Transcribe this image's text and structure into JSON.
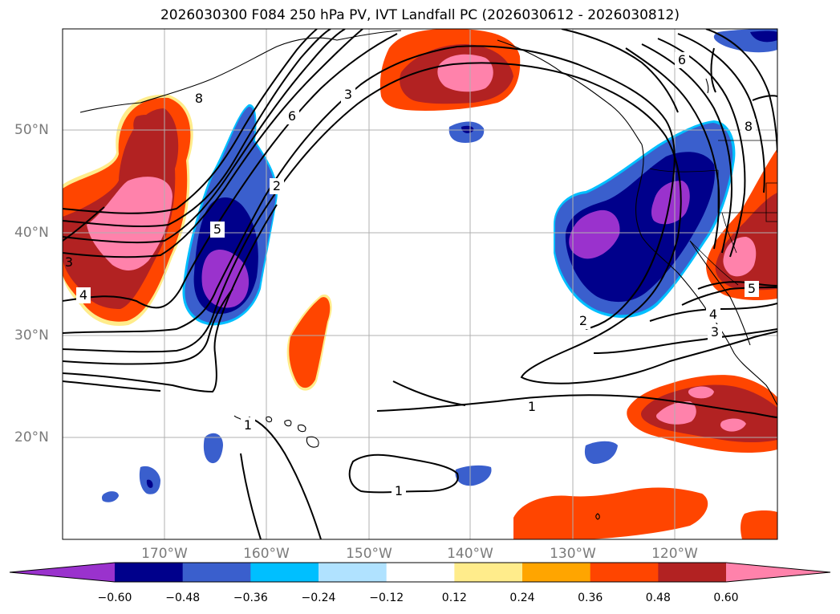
{
  "title": "2026030300 F084 250 hPa PV, IVT Landfall PC (2026030612 - 2026030812)",
  "lat_labels": [
    "50°N",
    "40°N",
    "30°N",
    "20°N"
  ],
  "lon_labels": [
    "170°W",
    "160°W",
    "150°W",
    "140°W",
    "130°W",
    "120°W"
  ],
  "colorbar": {
    "colors": [
      "#9a32cd",
      "#00008b",
      "#3a5fcd",
      "#00bfff",
      "#b0e2ff",
      "#ffffff",
      "#ffec8b",
      "#ffa500",
      "#ff4500",
      "#b22222",
      "#ff82ab"
    ],
    "ticks": [
      "−0.60",
      "−0.48",
      "−0.36",
      "−0.24",
      "−0.12",
      "0.12",
      "0.24",
      "0.36",
      "0.48",
      "0.60"
    ]
  },
  "contour_labels": [
    "8",
    "6",
    "3",
    "2",
    "5",
    "4",
    "3",
    "6",
    "8",
    "2",
    "1",
    "1",
    "1",
    "5",
    "4",
    "3"
  ]
}
